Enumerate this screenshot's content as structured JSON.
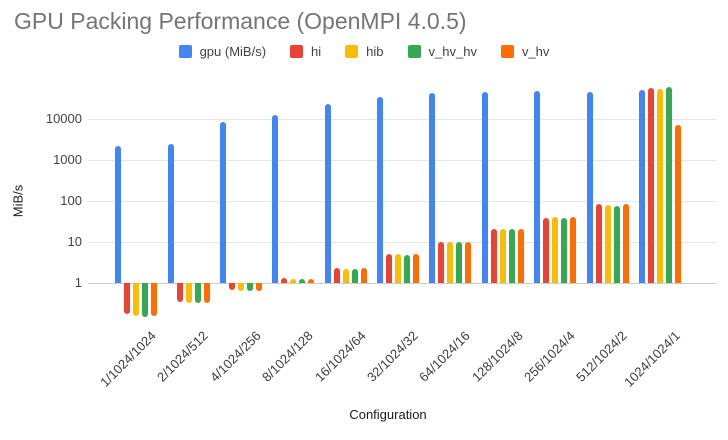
{
  "title": "GPU Packing Performance (OpenMPI 4.0.5)",
  "colors": {
    "title_text": "#757575",
    "axis_text": "#424242",
    "gridline": "#e6e6e6",
    "baseline": "#cccccc",
    "background": "#ffffff"
  },
  "chart_data": {
    "type": "bar",
    "scale": "log",
    "title": "GPU Packing Performance (OpenMPI 4.0.5)",
    "xlabel": "Configuration",
    "ylabel": "MiB/s",
    "grid": true,
    "legend_position": "top",
    "y_ticks": [
      1,
      10,
      100,
      1000,
      10000
    ],
    "ylim_log": [
      -0.9,
      4.9
    ],
    "categories": [
      "1/1024/1024",
      "2/1024/512",
      "4/1024/256",
      "8/1024/128",
      "16/1024/64",
      "32/1024/32",
      "64/1024/16",
      "128/1024/8",
      "256/1024/4",
      "512/1024/2",
      "1024/1024/1"
    ],
    "series": [
      {
        "name": "gpu (MiB/s)",
        "color": "#4285F4",
        "values": [
          2200,
          2500,
          8300,
          12500,
          23000,
          35000,
          42000,
          45000,
          49000,
          45000,
          52000
        ]
      },
      {
        "name": "hi",
        "color": "#EA4335",
        "values": [
          0.18,
          0.34,
          0.66,
          1.33,
          2.4,
          5.2,
          9.8,
          21,
          38,
          83,
          58000
        ]
      },
      {
        "name": "hib",
        "color": "#FBBC04",
        "values": [
          0.16,
          0.33,
          0.65,
          1.29,
          2.25,
          5.0,
          10.0,
          21,
          40,
          80,
          55000
        ]
      },
      {
        "name": "v_hv_hv",
        "color": "#34A853",
        "values": [
          0.15,
          0.32,
          0.64,
          1.25,
          2.25,
          4.8,
          10.0,
          21,
          39,
          77,
          60000
        ]
      },
      {
        "name": "v_hv",
        "color": "#FF6D01",
        "values": [
          0.16,
          0.33,
          0.65,
          1.27,
          2.3,
          5.1,
          10.2,
          21,
          41,
          86,
          7000
        ]
      }
    ]
  }
}
